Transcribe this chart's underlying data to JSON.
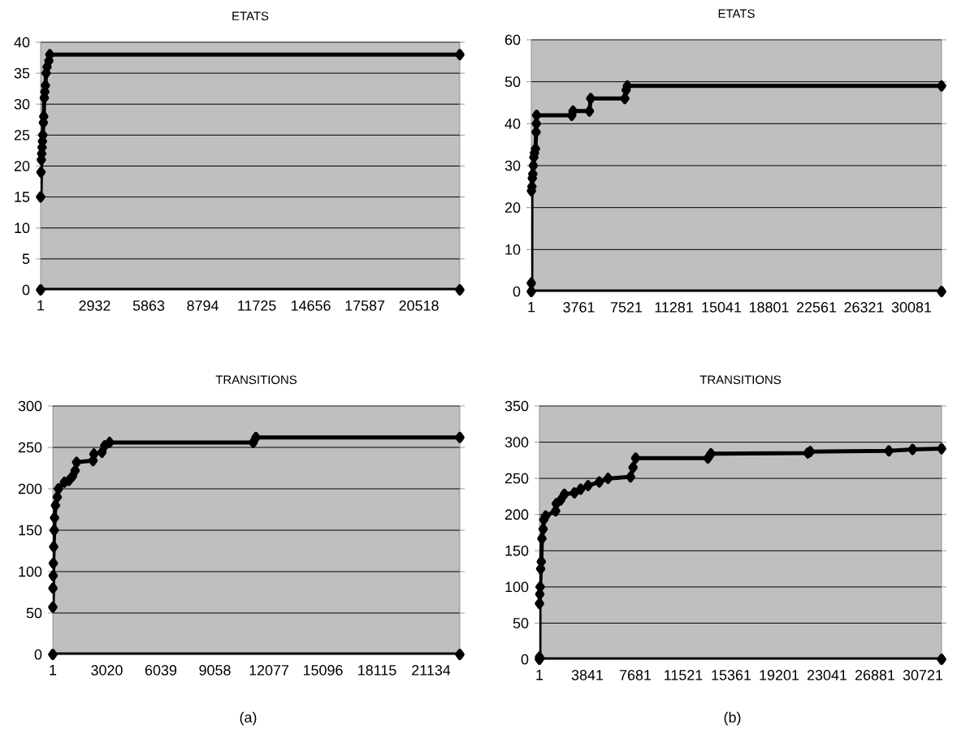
{
  "chart_data": [
    {
      "type": "line",
      "title": "ETATS",
      "xlim": [
        1,
        22740
      ],
      "xticks": [
        1,
        2932,
        5863,
        8794,
        11725,
        14656,
        17587,
        20518
      ],
      "ylim": [
        0,
        40
      ],
      "yticks": [
        0,
        5,
        10,
        15,
        20,
        25,
        30,
        35,
        40
      ],
      "grid": "y",
      "marker": "diamond",
      "line_style": "solid",
      "series": [
        {
          "color": "#000000",
          "x": [
            1,
            20,
            40,
            60,
            80,
            100,
            120,
            150,
            170,
            200,
            230,
            260,
            300,
            350,
            450,
            500,
            22740
          ],
          "values": [
            15,
            19,
            21,
            22,
            23,
            24,
            25,
            27,
            28,
            31,
            32,
            33,
            35,
            36,
            37,
            38,
            38
          ]
        },
        {
          "color": "#000000",
          "x": [
            1,
            22740
          ],
          "values": [
            0,
            0
          ]
        }
      ]
    },
    {
      "type": "line",
      "title": "ETATS",
      "xlim": [
        1,
        32460
      ],
      "xticks": [
        1,
        3761,
        7521,
        11281,
        15041,
        18801,
        22561,
        26321,
        30081
      ],
      "ylim": [
        0,
        60
      ],
      "yticks": [
        0,
        10,
        20,
        30,
        40,
        50,
        60
      ],
      "grid": "y",
      "marker": "diamond",
      "line_style": "solid",
      "series": [
        {
          "color": "#000000",
          "x": [
            1,
            10,
            50,
            80,
            120,
            160,
            200,
            250,
            330,
            380,
            400,
            420,
            3200,
            3300,
            4600,
            4700,
            7400,
            7500,
            7600,
            32460
          ],
          "values": [
            2,
            24,
            25,
            27,
            28,
            30,
            32,
            33,
            34,
            38,
            40,
            42,
            42,
            43,
            43,
            46,
            46,
            48,
            49,
            49
          ]
        },
        {
          "color": "#000000",
          "x": [
            1,
            32460
          ],
          "values": [
            0,
            0
          ]
        }
      ]
    },
    {
      "type": "line",
      "title": "TRANSITIONS",
      "xlim": [
        1,
        22745
      ],
      "xticks": [
        1,
        3020,
        6039,
        9058,
        12077,
        15096,
        18115,
        21134
      ],
      "ylim": [
        0,
        300
      ],
      "yticks": [
        0,
        50,
        100,
        150,
        200,
        250,
        300
      ],
      "grid": "y",
      "marker": "diamond",
      "line_style": "solid",
      "annotations": [
        "(a)"
      ],
      "series": [
        {
          "color": "#000000",
          "x": [
            1,
            10,
            20,
            30,
            50,
            80,
            100,
            150,
            250,
            320,
            650,
            900,
            1100,
            1250,
            1330,
            2250,
            2300,
            2750,
            2900,
            3175,
            11200,
            11350,
            22745
          ],
          "values": [
            57,
            80,
            95,
            110,
            130,
            150,
            165,
            180,
            190,
            200,
            208,
            210,
            215,
            222,
            232,
            234,
            242,
            244,
            252,
            256,
            256,
            262,
            262
          ]
        },
        {
          "color": "#000000",
          "x": [
            1,
            22745
          ],
          "values": [
            0,
            0
          ]
        }
      ]
    },
    {
      "type": "line",
      "title": "TRANSITIONS",
      "xlim": [
        1,
        32220
      ],
      "xticks": [
        1,
        3841,
        7681,
        11521,
        15361,
        19201,
        23041,
        26881,
        30721
      ],
      "ylim": [
        0,
        350
      ],
      "yticks": [
        0,
        50,
        100,
        150,
        200,
        250,
        300,
        350
      ],
      "grid": "y",
      "marker": "diamond",
      "line_style": "solid",
      "annotations": [
        "(b)"
      ],
      "series": [
        {
          "color": "#000000",
          "x": [
            1,
            5,
            30,
            60,
            100,
            150,
            200,
            300,
            350,
            500,
            1300,
            1350,
            1700,
            2000,
            2800,
            3300,
            3900,
            4800,
            5500,
            7300,
            7500,
            7710,
            13500,
            13740,
            21500,
            21700,
            28000,
            29900,
            32220
          ],
          "values": [
            3,
            77,
            90,
            100,
            125,
            135,
            167,
            180,
            193,
            198,
            205,
            215,
            220,
            228,
            230,
            235,
            240,
            245,
            250,
            252,
            265,
            278,
            278,
            284,
            285,
            287,
            288,
            290,
            291
          ]
        },
        {
          "color": "#000000",
          "x": [
            1,
            32220
          ],
          "values": [
            0,
            0
          ]
        }
      ]
    }
  ]
}
